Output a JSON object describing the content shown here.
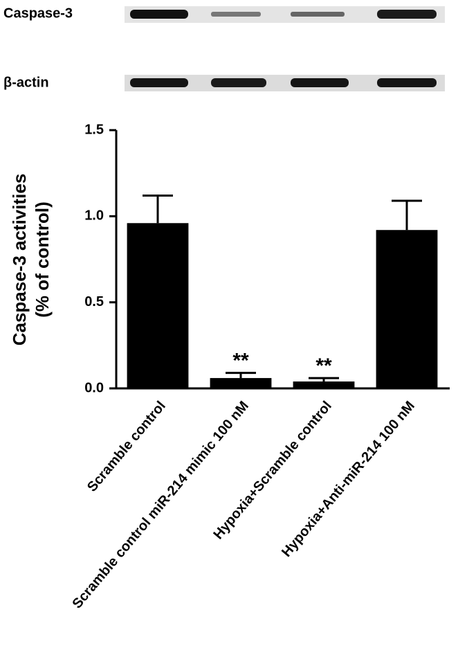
{
  "blot": {
    "rows": [
      "Caspase-3",
      "β-actin"
    ]
  },
  "chart_data": {
    "type": "bar",
    "ylabel": [
      "Caspase-3 activities",
      "(% of control)"
    ],
    "categories": [
      "Scramble control",
      "Scramble control miR-214 mimic 100 nM",
      "Hypoxia+Scramble control",
      "Hypoxia+Anti-miR-214 100 nM"
    ],
    "values": [
      0.96,
      0.06,
      0.04,
      0.92
    ],
    "errors": [
      0.16,
      0.03,
      0.02,
      0.17
    ],
    "significance": [
      null,
      "**",
      "**",
      null
    ],
    "color": "#000000",
    "ylim": [
      0,
      1.5
    ],
    "yticks": [
      {
        "value": 0,
        "label": "0.0"
      },
      0.5,
      {
        "value": 1,
        "label": "1.0"
      },
      {
        "value": 1.5,
        "label": "1.5"
      }
    ]
  }
}
